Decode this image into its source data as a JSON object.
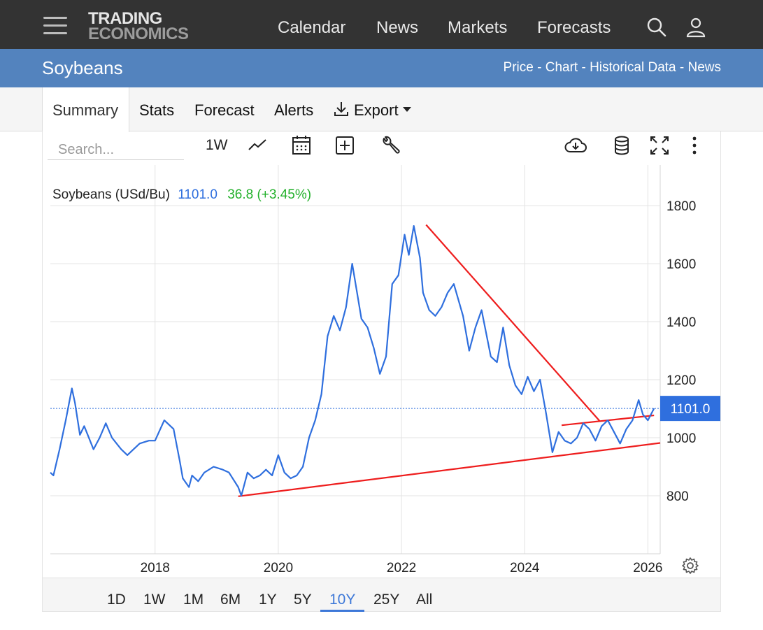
{
  "header": {
    "logo_line1": "TRADING",
    "logo_line2": "ECONOMICS",
    "nav": [
      "Calendar",
      "News",
      "Markets",
      "Forecasts"
    ]
  },
  "title_bar": {
    "title": "Soybeans",
    "links": "Price - Chart - Historical Data - News"
  },
  "tabs": [
    "Summary",
    "Stats",
    "Forecast",
    "Alerts",
    "Export"
  ],
  "toolbar": {
    "search_placeholder": "Search...",
    "interval": "1W"
  },
  "quote": {
    "name": "Soybeans (USd/Bu)",
    "price": "1101.0",
    "change": "36.8 (+3.45%)",
    "price_color": "#2f6fde",
    "change_color": "#23b02b"
  },
  "ranges": [
    "1D",
    "1W",
    "1M",
    "6M",
    "1Y",
    "5Y",
    "10Y",
    "25Y",
    "All"
  ],
  "active_range": "10Y",
  "chart_data": {
    "type": "line",
    "title": "",
    "xlabel": "",
    "ylabel": "",
    "y_ticks": [
      800,
      1000,
      1200,
      1400,
      1600,
      1800
    ],
    "x_ticks": [
      "2018",
      "2020",
      "2022",
      "2024",
      "2026"
    ],
    "ylim": [
      600,
      1940
    ],
    "xlim": [
      2016.3,
      2026.2
    ],
    "grid": true,
    "last_value_label": "1101.0",
    "line_color": "#2f6fde",
    "trendline_color": "#ee1d1d",
    "series": [
      {
        "name": "",
        "x": [
          2016.3,
          2016.35,
          2016.45,
          2016.55,
          2016.65,
          2016.7,
          2016.78,
          2016.85,
          2017.0,
          2017.1,
          2017.2,
          2017.3,
          2017.45,
          2017.55,
          2017.65,
          2017.75,
          2017.9,
          2018.0,
          2018.15,
          2018.3,
          2018.4,
          2018.45,
          2018.55,
          2018.6,
          2018.7,
          2018.8,
          2018.95,
          2019.1,
          2019.2,
          2019.35,
          2019.4,
          2019.5,
          2019.6,
          2019.7,
          2019.8,
          2019.9,
          2020.0,
          2020.1,
          2020.2,
          2020.3,
          2020.4,
          2020.5,
          2020.6,
          2020.7,
          2020.8,
          2020.9,
          2021.0,
          2021.1,
          2021.2,
          2021.35,
          2021.45,
          2021.55,
          2021.65,
          2021.75,
          2021.85,
          2021.95,
          2022.05,
          2022.12,
          2022.2,
          2022.3,
          2022.35,
          2022.45,
          2022.55,
          2022.65,
          2022.75,
          2022.85,
          2023.0,
          2023.1,
          2023.2,
          2023.3,
          2023.45,
          2023.55,
          2023.65,
          2023.75,
          2023.85,
          2023.95,
          2024.05,
          2024.15,
          2024.25,
          2024.35,
          2024.45,
          2024.55,
          2024.65,
          2024.75,
          2024.85,
          2024.95,
          2025.05,
          2025.15,
          2025.25,
          2025.35,
          2025.45,
          2025.55,
          2025.65,
          2025.75,
          2025.85,
          2025.92,
          2026.0,
          2026.1
        ],
        "values": [
          880,
          870,
          960,
          1060,
          1170,
          1120,
          1010,
          1040,
          960,
          1000,
          1050,
          1000,
          960,
          940,
          960,
          980,
          990,
          990,
          1060,
          1030,
          920,
          860,
          830,
          870,
          850,
          880,
          900,
          890,
          880,
          830,
          800,
          880,
          860,
          870,
          890,
          870,
          940,
          880,
          860,
          870,
          900,
          1000,
          1060,
          1150,
          1350,
          1420,
          1370,
          1450,
          1600,
          1410,
          1380,
          1310,
          1220,
          1280,
          1530,
          1560,
          1700,
          1630,
          1730,
          1620,
          1500,
          1440,
          1420,
          1450,
          1500,
          1530,
          1420,
          1300,
          1380,
          1440,
          1280,
          1260,
          1380,
          1250,
          1180,
          1150,
          1210,
          1160,
          1200,
          1080,
          950,
          1020,
          990,
          980,
          1000,
          1050,
          1030,
          990,
          1040,
          1060,
          1020,
          980,
          1030,
          1060,
          1130,
          1080,
          1060,
          1101
        ]
      }
    ],
    "trendlines": [
      {
        "x": [
          2019.35,
          2026.2
        ],
        "values": [
          798,
          982
        ]
      },
      {
        "x": [
          2022.4,
          2025.22
        ],
        "values": [
          1734,
          1057
        ]
      },
      {
        "x": [
          2024.6,
          2026.1
        ],
        "values": [
          1043,
          1077
        ]
      }
    ]
  }
}
